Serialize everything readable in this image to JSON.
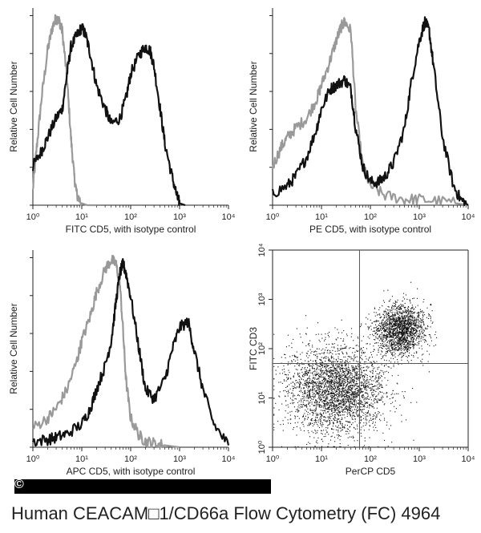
{
  "figure": {
    "caption": "Human CEACAM□1/CD66a Flow Cytometry (FC) 4964",
    "copyright_symbol": "©"
  },
  "chart_data": [
    {
      "type": "line",
      "panel": "top-left",
      "xlabel": "FITC CD5, with isotype control",
      "ylabel": "Relative Cell Number",
      "xscale": "log",
      "xlim": [
        1,
        10000
      ],
      "xticks": [
        "10⁰",
        "10¹",
        "10²",
        "10³",
        "10⁴"
      ],
      "series": [
        {
          "color": "#999999",
          "x": [
            1,
            1.2,
            1.5,
            2,
            2.5,
            3,
            3.5,
            4,
            5,
            6,
            7,
            8,
            10,
            13,
            20
          ],
          "y": [
            0.08,
            0.3,
            0.55,
            0.8,
            0.92,
            0.97,
            0.95,
            0.9,
            0.65,
            0.35,
            0.15,
            0.05,
            0.01,
            0,
            0
          ]
        },
        {
          "color": "#111111",
          "x": [
            1,
            1.5,
            2,
            3,
            4,
            5,
            6,
            8,
            10,
            12,
            15,
            20,
            30,
            40,
            60,
            80,
            100,
            150,
            200,
            250,
            300,
            400,
            500,
            700,
            900,
            1000,
            1300
          ],
          "y": [
            0.2,
            0.28,
            0.35,
            0.45,
            0.5,
            0.68,
            0.82,
            0.88,
            0.92,
            0.88,
            0.78,
            0.62,
            0.5,
            0.42,
            0.45,
            0.55,
            0.68,
            0.78,
            0.82,
            0.8,
            0.72,
            0.5,
            0.32,
            0.15,
            0.04,
            0.01,
            0
          ]
        }
      ]
    },
    {
      "type": "line",
      "panel": "top-right",
      "xlabel": "PE CD5, with isotype control",
      "ylabel": "Relative Cell Number",
      "xscale": "log",
      "xlim": [
        1,
        10000
      ],
      "xticks": [
        "10⁰",
        "10¹",
        "10²",
        "10³",
        "10⁴"
      ],
      "series": [
        {
          "color": "#999999",
          "x": [
            1,
            1.5,
            2,
            3,
            5,
            8,
            10,
            15,
            20,
            25,
            30,
            40,
            50,
            70,
            100,
            200,
            500,
            1000,
            3000,
            10000
          ],
          "y": [
            0.2,
            0.3,
            0.35,
            0.4,
            0.45,
            0.55,
            0.62,
            0.75,
            0.85,
            0.92,
            0.95,
            0.9,
            0.5,
            0.2,
            0.1,
            0.05,
            0.03,
            0.03,
            0.02,
            0
          ]
        },
        {
          "color": "#111111",
          "x": [
            1,
            2,
            3,
            5,
            8,
            10,
            15,
            20,
            30,
            40,
            50,
            70,
            100,
            150,
            200,
            300,
            500,
            700,
            1000,
            1300,
            1600,
            2000,
            3000,
            5000,
            7000,
            10000
          ],
          "y": [
            0.06,
            0.1,
            0.15,
            0.25,
            0.4,
            0.5,
            0.6,
            0.62,
            0.65,
            0.6,
            0.4,
            0.2,
            0.12,
            0.12,
            0.15,
            0.22,
            0.4,
            0.65,
            0.85,
            0.95,
            0.9,
            0.7,
            0.35,
            0.1,
            0.03,
            0
          ]
        }
      ]
    },
    {
      "type": "line",
      "panel": "bottom-left",
      "xlabel": "APC CD5, with isotype control",
      "ylabel": "Relative Cell Number",
      "xscale": "log",
      "xlim": [
        1,
        10000
      ],
      "xticks": [
        "10⁰",
        "10¹",
        "10²",
        "10³",
        "10⁴"
      ],
      "series": [
        {
          "color": "#999999",
          "x": [
            1,
            2,
            3,
            5,
            8,
            10,
            15,
            20,
            30,
            40,
            50,
            60,
            70,
            80,
            100,
            150,
            200,
            300,
            500,
            1000
          ],
          "y": [
            0.1,
            0.15,
            0.2,
            0.3,
            0.45,
            0.55,
            0.68,
            0.8,
            0.92,
            0.97,
            0.95,
            0.85,
            0.6,
            0.35,
            0.15,
            0.06,
            0.03,
            0.02,
            0.01,
            0
          ]
        },
        {
          "color": "#111111",
          "x": [
            1,
            2,
            3,
            5,
            10,
            15,
            20,
            30,
            40,
            50,
            60,
            70,
            80,
            100,
            150,
            200,
            300,
            500,
            700,
            1000,
            1500,
            2000,
            3000,
            5000,
            10000
          ],
          "y": [
            0.03,
            0.04,
            0.05,
            0.07,
            0.12,
            0.2,
            0.3,
            0.42,
            0.55,
            0.75,
            0.9,
            0.95,
            0.9,
            0.78,
            0.5,
            0.3,
            0.25,
            0.35,
            0.5,
            0.62,
            0.65,
            0.5,
            0.3,
            0.12,
            0.01
          ]
        }
      ]
    },
    {
      "type": "scatter",
      "panel": "bottom-right",
      "xlabel": "PerCP CD5",
      "ylabel": "FITC CD3",
      "xscale": "log",
      "yscale": "log",
      "xlim": [
        1,
        10000
      ],
      "ylim": [
        1,
        10000
      ],
      "xticks": [
        "10⁰",
        "10¹",
        "10²",
        "10³",
        "10⁴"
      ],
      "yticks": [
        "10⁰",
        "10¹",
        "10²",
        "10³",
        "10⁴"
      ],
      "quadrant_x": 60,
      "quadrant_y": 50,
      "clusters": [
        {
          "center_x": 20,
          "center_y": 15,
          "spread_log": 0.45,
          "count": 3000
        },
        {
          "center_x": 400,
          "center_y": 250,
          "spread_log": 0.25,
          "count": 1800
        }
      ]
    }
  ]
}
